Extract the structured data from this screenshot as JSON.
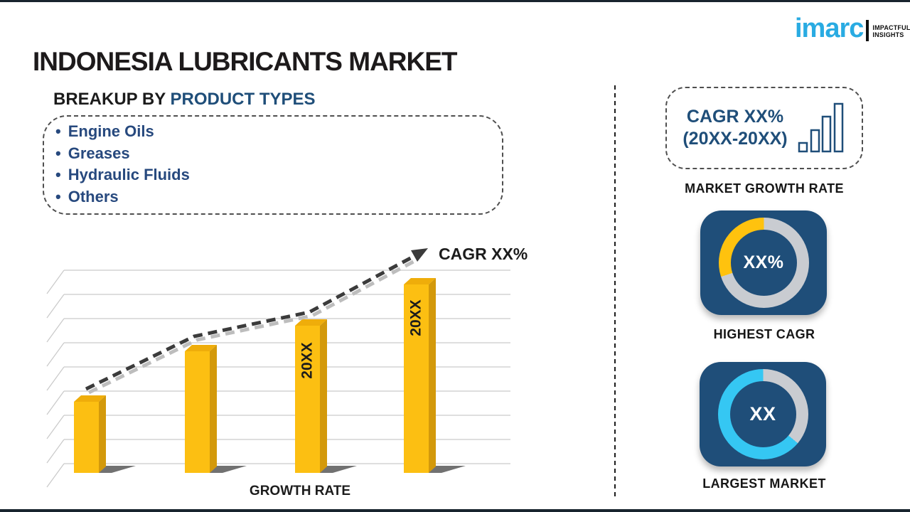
{
  "page": {
    "title": "INDONESIA LUBRICANTS MARKET"
  },
  "logo": {
    "brand": "imarc",
    "tagline": "IMPACTFUL\nINSIGHTS",
    "brand_color": "#29ABE2"
  },
  "breakup": {
    "heading_prefix": "BREAKUP BY ",
    "heading_accent": "PRODUCT TYPES",
    "bullet": "•",
    "items": [
      "Engine Oils",
      "Greases",
      "Hydraulic Fluids",
      "Others"
    ]
  },
  "chart": {
    "cagr_label": "CAGR XX%",
    "xlabel": "GROWTH RATE",
    "bar_labels": [
      "",
      "",
      "20XX",
      "20XX"
    ]
  },
  "sidebar": {
    "cagr_box": {
      "line1": "CAGR XX%",
      "line2": "(20XX-20XX)"
    },
    "market_growth_rate_label": "MARKET GROWTH RATE",
    "highest_cagr": {
      "center": "XX%",
      "label": "HIGHEST CAGR"
    },
    "largest_market": {
      "center": "XX",
      "label": "LARGEST MARKET"
    }
  },
  "colors": {
    "navy": "#1F4E79",
    "bar_front": "#FCBF12",
    "bar_top": "#EFAD0A",
    "bar_side": "#D3990B",
    "bar_shadow": "#4E4E4E",
    "grid": "#C9C9C9",
    "trend": "#3B3B3B",
    "trend_shadow": "#BDBDBD",
    "yellow": "#FFC20E",
    "cyan": "#35C7F3",
    "ring_gray": "#C9CCD1",
    "brand_blue": "#29ABE2"
  },
  "chart_data": [
    {
      "type": "bar",
      "title": "",
      "xlabel": "GROWTH RATE",
      "categories": [
        "(unlabeled)",
        "(unlabeled)",
        "20XX",
        "20XX"
      ],
      "values_relative": [
        100,
        171,
        207,
        265
      ],
      "value_note": "axis unlabeled; values are estimated relative heights",
      "bar_color": "#FCBF12",
      "gridlines": true,
      "style": "3d-column",
      "trend_line": {
        "type": "line",
        "style": "dashed-arrow",
        "label": "CAGR XX%",
        "direction": "increasing"
      }
    },
    {
      "type": "pie",
      "variant": "donut",
      "label": "HIGHEST CAGR",
      "center_text": "XX%",
      "slices": [
        {
          "name": "highlighted",
          "value_deg": 108,
          "color": "#FFC20E"
        },
        {
          "name": "remainder",
          "value_deg": 252,
          "color": "#C9CCD1"
        }
      ]
    },
    {
      "type": "pie",
      "variant": "donut",
      "label": "LARGEST MARKET",
      "center_text": "XX",
      "slices": [
        {
          "name": "highlighted",
          "value_deg": 230,
          "color": "#35C7F3"
        },
        {
          "name": "remainder",
          "value_deg": 130,
          "color": "#C9CCD1"
        }
      ]
    }
  ]
}
